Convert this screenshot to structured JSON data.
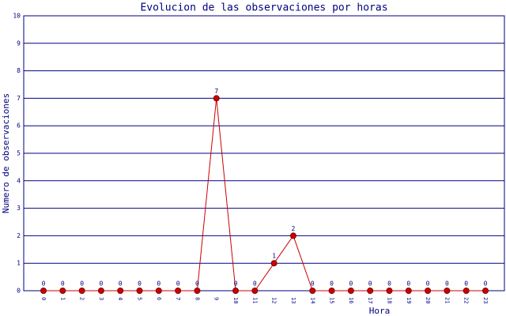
{
  "chart_data": {
    "type": "line",
    "title": "Evolucion de las observaciones por horas",
    "x_label": "Hora",
    "y_label": "Numero de observaciones",
    "categories": [
      "0",
      "1",
      "2",
      "3",
      "4",
      "5",
      "6",
      "7",
      "8",
      "9",
      "10",
      "11",
      "12",
      "13",
      "14",
      "15",
      "16",
      "17",
      "18",
      "19",
      "20",
      "21",
      "22",
      "23"
    ],
    "series": [
      {
        "name": "observaciones",
        "color": "#cc0000",
        "values": [
          0,
          0,
          0,
          0,
          0,
          0,
          0,
          0,
          0,
          7,
          0,
          0,
          1,
          2,
          0,
          0,
          0,
          0,
          0,
          0,
          0,
          0,
          0,
          0
        ]
      }
    ],
    "ylim": [
      0,
      10
    ],
    "yticks": [
      0,
      1,
      2,
      3,
      4,
      5,
      6,
      7,
      8,
      9,
      10
    ],
    "grid": true,
    "legend": false
  }
}
